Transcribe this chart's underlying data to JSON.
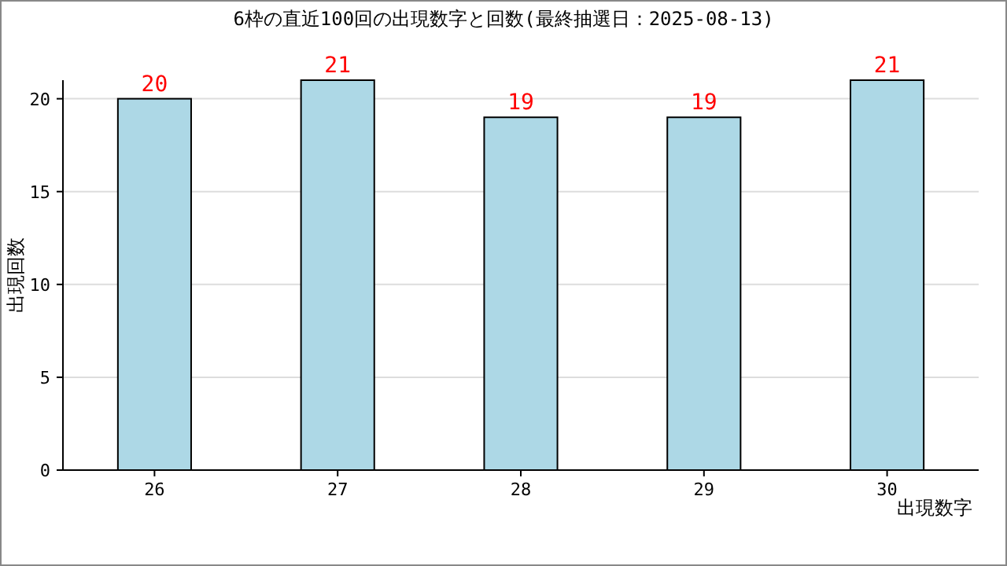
{
  "chart_data": {
    "type": "bar",
    "title": "6枠の直近100回の出現数字と回数(最終抽選日：2025-08-13)",
    "xlabel": "出現数字",
    "ylabel": "出現回数",
    "categories": [
      "26",
      "27",
      "28",
      "29",
      "30"
    ],
    "series": [
      {
        "color": "#add8e6",
        "values": [
          20,
          21,
          19,
          19,
          21
        ]
      }
    ],
    "ylim": [
      0,
      21
    ],
    "yticks": [
      0,
      5,
      10,
      15,
      20
    ],
    "grid": "y",
    "data_labels": true
  }
}
